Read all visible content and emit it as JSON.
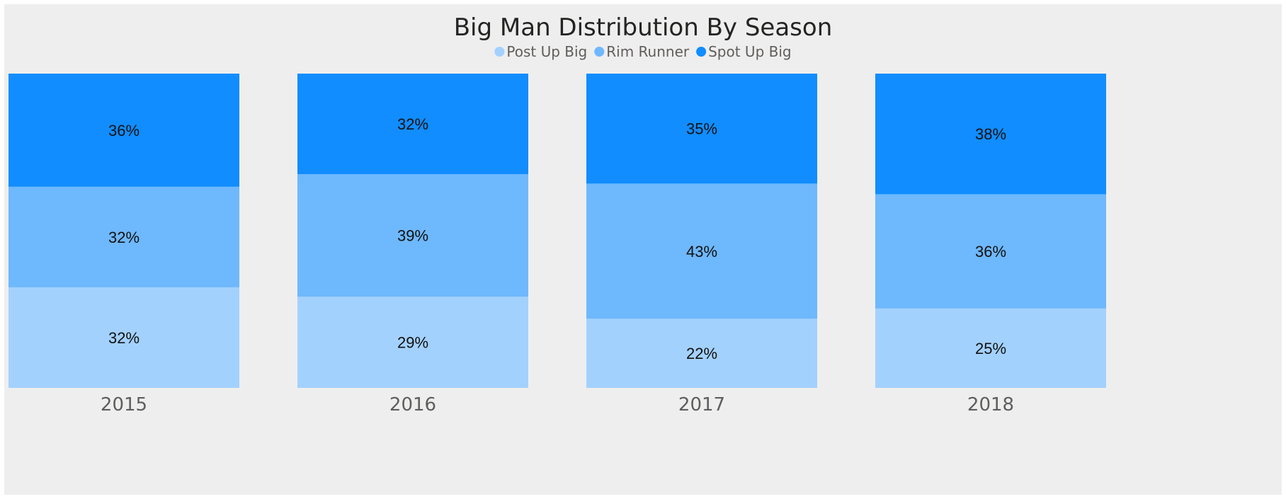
{
  "chart_data": {
    "type": "bar",
    "stacked": true,
    "normalized": true,
    "title": "Big Man Distribution By Season",
    "categories": [
      "2015",
      "2016",
      "2017",
      "2018"
    ],
    "series": [
      {
        "name": "Post Up Big",
        "color": "#a3d1fe",
        "values": [
          32,
          29,
          22,
          25
        ],
        "labels": [
          "32%",
          "29%",
          "22%",
          "25%"
        ]
      },
      {
        "name": "Rim Runner",
        "color": "#6eb8fd",
        "values": [
          32,
          39,
          43,
          36
        ],
        "labels": [
          "32%",
          "39%",
          "43%",
          "36%"
        ]
      },
      {
        "name": "Spot Up Big",
        "color": "#118dff",
        "values": [
          36,
          32,
          35,
          38
        ],
        "labels": [
          "36%",
          "32%",
          "35%",
          "38%"
        ]
      }
    ],
    "ylim": [
      0,
      100
    ],
    "legend_position": "top-center",
    "grid": false
  }
}
